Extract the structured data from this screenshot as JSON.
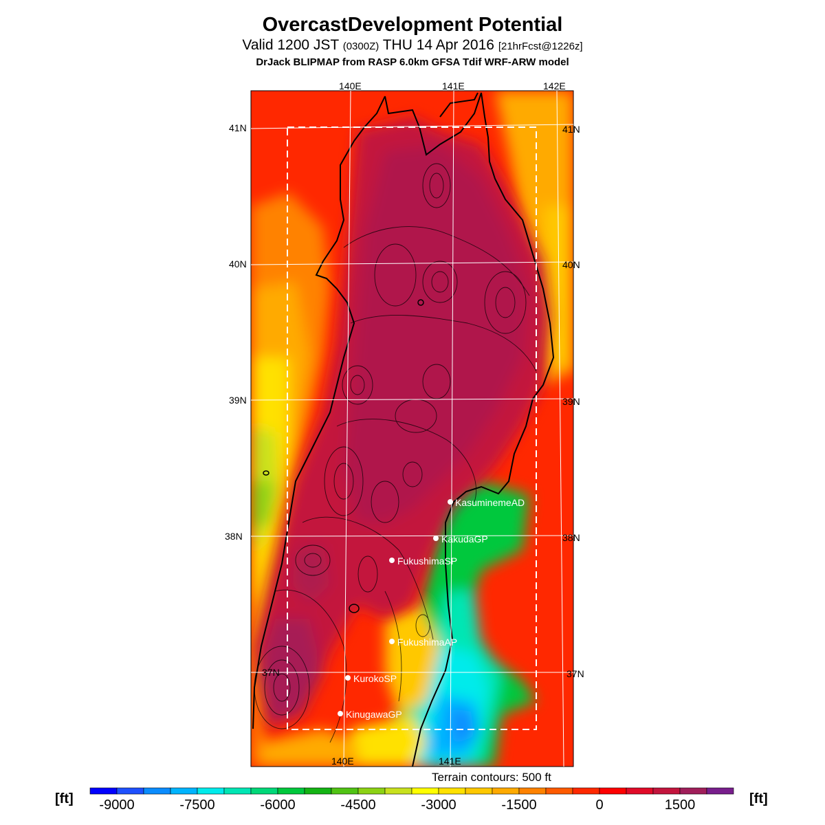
{
  "header": {
    "title": "OvercastDevelopment Potential",
    "valid_prefix": "Valid 1200 JST",
    "valid_utc": "(0300Z)",
    "valid_date": "THU 14 Apr 2016",
    "forecast": "[21hrFcst@1226z]",
    "model": "DrJack BLIPMAP from RASP 6.0km GFSA Tdif WRF-ARW model"
  },
  "map": {
    "lon_labels": [
      "140E",
      "141E",
      "142E"
    ],
    "lat_labels": [
      "41N",
      "40N",
      "39N",
      "38N",
      "37N"
    ],
    "sites": [
      {
        "name": "KasuminemeAD"
      },
      {
        "name": "KakudaGP"
      },
      {
        "name": "FukushimaSP"
      },
      {
        "name": "FukushimaAP"
      },
      {
        "name": "KurokoSP"
      },
      {
        "name": "KinugawaGP"
      }
    ]
  },
  "footer": {
    "terrain_note": "Terrain contours: 500 ft"
  },
  "legend": {
    "unit": "[ft]",
    "tick_labels": [
      "-9000",
      "-7500",
      "-6000",
      "-4500",
      "-3000",
      "-1500",
      "0",
      "1500"
    ],
    "colors": [
      "#0000ff",
      "#1e50ff",
      "#0a8cff",
      "#00b4ff",
      "#00ebeb",
      "#00e6b4",
      "#00d878",
      "#00c83c",
      "#14b414",
      "#50c314",
      "#8cd214",
      "#c8e11e",
      "#ffff00",
      "#ffe100",
      "#ffc800",
      "#ffaa00",
      "#ff8200",
      "#ff5a00",
      "#ff2800",
      "#ff0000",
      "#e10a28",
      "#c3143c",
      "#a01e5a",
      "#781e8c"
    ]
  }
}
